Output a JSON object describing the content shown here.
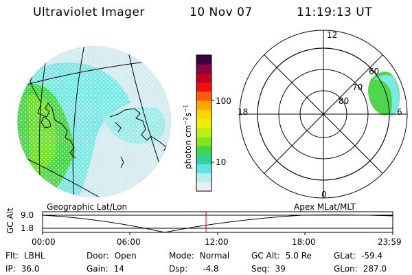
{
  "header": {
    "instrument": "Ultraviolet Imager",
    "date": "10 Nov 07",
    "time": "11:19:13 UT"
  },
  "colorbar": {
    "unit_label": "photon cm",
    "unit_exp1": "−2",
    "unit_s": "s",
    "unit_exp2": "−1",
    "tick_high": "100",
    "tick_low": "10",
    "colors": [
      "#e8f0f4",
      "#b8ecef",
      "#5fe3e0",
      "#2fd29a",
      "#3fd84a",
      "#7fe620",
      "#c0ee10",
      "#eef000",
      "#ffd400",
      "#ffa500",
      "#ff5a10",
      "#f01010",
      "#c00020",
      "#8a0040",
      "#3a0040"
    ]
  },
  "geo_map": {
    "label": "Geographic Lat/Lon",
    "aurora_colors": {
      "cyan": "#7fe7e4",
      "green": "#4fd64a",
      "light": "#d4ecef"
    }
  },
  "polar_plot": {
    "label": "Apex MLat/MLT",
    "mlt_labels": {
      "top": "12",
      "left": "18",
      "right": "6",
      "bottom": "0"
    },
    "lat_labels": [
      "60",
      "70",
      "80"
    ]
  },
  "altitude_plot": {
    "y_label": "GC Alt",
    "y_max": "9.0",
    "y_min": "1.8",
    "x_ticks": [
      "00:00",
      "06:00",
      "12:00",
      "18:00",
      "23:59"
    ],
    "current_marker_color": "#d00000"
  },
  "status": {
    "flt_label": "Flt:",
    "flt_value": "LBHL",
    "ip_label": "IP:",
    "ip_value": "36.0",
    "door_label": "Door:",
    "door_value": "Open",
    "gain_label": "Gain:",
    "gain_value": "14",
    "mode_label": "Mode:",
    "mode_value": "Normal",
    "dsp_label": "Dsp:",
    "dsp_value": "-4.8",
    "gcalt_label": "GC Alt:",
    "gcalt_value": "5.0 Re",
    "seq_label": "Seq:",
    "seq_value": "39",
    "glat_label": "GLat:",
    "glat_value": "-59.4",
    "glon_label": "GLon:",
    "glon_value": "287.0"
  }
}
